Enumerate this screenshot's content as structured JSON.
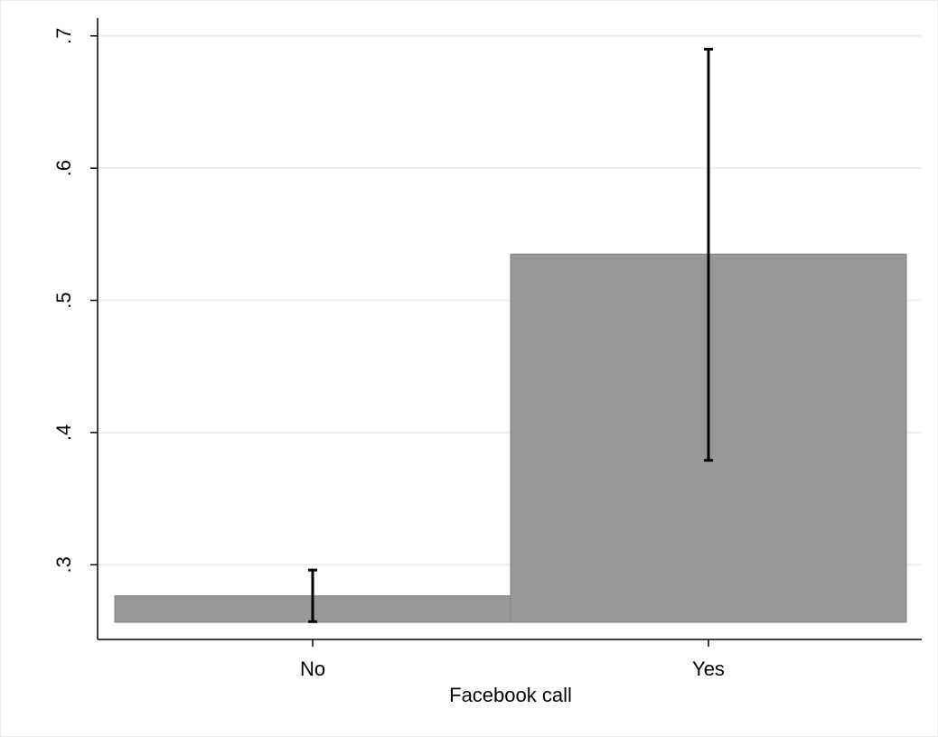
{
  "chart_data": {
    "type": "bar",
    "categories": [
      "No",
      "Yes"
    ],
    "values": [
      0.2765,
      0.535
    ],
    "error_bars": [
      {
        "low": 0.257,
        "high": 0.296
      },
      {
        "low": 0.379,
        "high": 0.69
      }
    ],
    "baseline": 0.2565,
    "title": "",
    "xlabel": "Facebook call",
    "ylabel": "",
    "ylim": [
      0.2435,
      0.7135
    ],
    "yticks": [
      0.3,
      0.4,
      0.5,
      0.6,
      0.7
    ],
    "ytick_labels": [
      ".3",
      ".4",
      ".5",
      ".6",
      ".7"
    ],
    "grid": true,
    "legend": "none",
    "colors": {
      "bar_fill": "#999999",
      "bar_stroke": "#7f7f7f",
      "grid": "#e8efef",
      "axis": "#000000",
      "error_bar": "#000000",
      "frame": "#ececec"
    }
  }
}
